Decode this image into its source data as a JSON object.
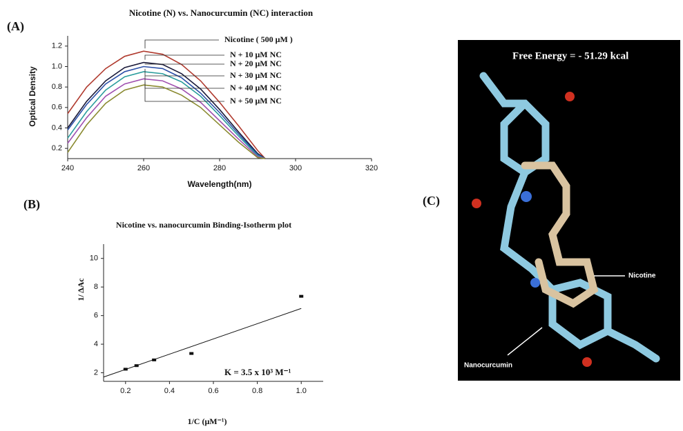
{
  "panels": {
    "a": "(A)",
    "b": "(B)",
    "c": "(C)"
  },
  "chart_data": [
    {
      "type": "line",
      "title": "Nicotine (N) vs. Nanocurcumin (NC) interaction",
      "x_label": "Wavelength(nm)",
      "y_label": "Optical Density",
      "x": [
        240,
        245,
        250,
        255,
        260,
        265,
        270,
        275,
        280,
        285,
        290,
        292
      ],
      "series": [
        {
          "name": "Nicotine ( 500 μM )",
          "color": "#b03a2e",
          "values": [
            0.54,
            0.8,
            0.98,
            1.1,
            1.15,
            1.12,
            1.02,
            0.86,
            0.65,
            0.42,
            0.18,
            0.1
          ]
        },
        {
          "name": "N + 10 μM NC",
          "color": "#1a1a3a",
          "values": [
            0.4,
            0.66,
            0.86,
            0.99,
            1.04,
            1.02,
            0.93,
            0.78,
            0.58,
            0.36,
            0.15,
            0.1
          ]
        },
        {
          "name": "N + 20 μM NC",
          "color": "#2b4fa8",
          "values": [
            0.38,
            0.63,
            0.83,
            0.95,
            1.0,
            0.98,
            0.89,
            0.74,
            0.55,
            0.34,
            0.14,
            0.1
          ]
        },
        {
          "name": "N + 30 μM NC",
          "color": "#2a9d9d",
          "values": [
            0.3,
            0.56,
            0.77,
            0.9,
            0.95,
            0.93,
            0.85,
            0.71,
            0.52,
            0.32,
            0.13,
            0.1
          ]
        },
        {
          "name": "N + 40 μM NC",
          "color": "#a050b0",
          "values": [
            0.25,
            0.5,
            0.71,
            0.83,
            0.88,
            0.86,
            0.78,
            0.65,
            0.47,
            0.29,
            0.12,
            0.1
          ]
        },
        {
          "name": "N + 50 μM NC",
          "color": "#8a8a30",
          "values": [
            0.16,
            0.43,
            0.64,
            0.77,
            0.82,
            0.8,
            0.72,
            0.6,
            0.43,
            0.26,
            0.11,
            0.1
          ]
        }
      ],
      "xlim": [
        240,
        320
      ],
      "xticks": [
        240,
        260,
        280,
        300,
        320
      ],
      "ylim": [
        0.1,
        1.3
      ],
      "yticks": [
        0.2,
        0.4,
        0.6,
        0.8,
        {
          "value": 1,
          "label": "1.0"
        },
        1.2
      ]
    },
    {
      "type": "scatter",
      "title": "Nicotine vs. nanocurcumin Binding-Isotherm plot",
      "x_label": "1/C  (μM⁻¹)",
      "y_label": "1/ ΔAc",
      "annotation": "K = 3.5 x 10³ M⁻¹",
      "x": [
        0.2,
        0.25,
        0.33,
        0.5,
        1.0
      ],
      "values": [
        2.25,
        2.5,
        2.9,
        3.35,
        7.35
      ],
      "color": "#111111",
      "fit_x": [
        0.1,
        1.0
      ],
      "fit_values": [
        1.7,
        6.5
      ],
      "xlim": [
        0.1,
        1.1
      ],
      "xticks": [
        0.2,
        0.4,
        0.6,
        0.8,
        {
          "value": 1,
          "label": "1.0"
        }
      ],
      "ylim": [
        1.4,
        11
      ],
      "yticks": [
        2,
        4,
        6,
        8,
        10
      ]
    }
  ],
  "molecule": {
    "energy": "Free Energy = - 51.29 kcal",
    "nicotine": "Nicotine",
    "nanocurcumin": "Nanocurcumin"
  }
}
